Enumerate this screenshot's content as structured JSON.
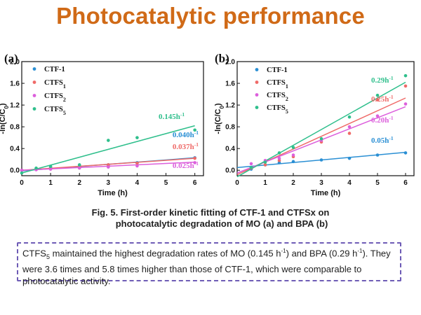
{
  "title": "Photocatalytic performance",
  "caption": {
    "line1": "Fig. 5. First-order kinetic fitting of CTF-1 and CTFSx on",
    "line2": "photocatalytic degradation of MO (a) and BPA (b)"
  },
  "note": {
    "s1": "CTFS",
    "s1_sub": "5",
    "s2": " maintained the highest degradation rates of MO (0.145 h",
    "s2_sup": "-1",
    "s3": ") and BPA (0.29 h",
    "s3_sup": "-1",
    "s4": "). They were 3.6 times and 5.8 times higher than those of CTF-1, which were comparable to photocatalytic activity."
  },
  "colors": {
    "CTF-1": "#2a8fd4",
    "CTFS1": "#ef6a68",
    "CTFS2": "#dc5fdc",
    "CTFS5": "#2fbf8c"
  },
  "chart_data": [
    {
      "type": "scatter",
      "panel": "(a)",
      "xlabel": "Time (h)",
      "ylabel": "-ln(C/C0)",
      "xlim": [
        0,
        6.3
      ],
      "ylim": [
        -0.1,
        2.0
      ],
      "xticks": [
        0,
        1,
        2,
        3,
        4,
        5,
        6
      ],
      "yticks": [
        0.0,
        0.4,
        0.8,
        1.2,
        1.6,
        2.0
      ],
      "legend_position": "top-left",
      "series": [
        {
          "name": "CTF-1",
          "legend_main": "CTF-1",
          "legend_sub": "",
          "key": "CTF-1",
          "x": [
            0,
            0.5,
            1,
            2,
            3,
            4,
            6
          ],
          "y": [
            0,
            0.03,
            0.05,
            0.08,
            0.1,
            0.14,
            0.23
          ],
          "fit": [
            [
              0,
              -0.01
            ],
            [
              6,
              0.23
            ]
          ],
          "rate": "0.040h",
          "rate_sup": "-1"
        },
        {
          "name": "CTFS1",
          "legend_main": "CTFS",
          "legend_sub": "1",
          "key": "CTFS1",
          "x": [
            0,
            0.5,
            1,
            2,
            3,
            4,
            6
          ],
          "y": [
            0,
            0.02,
            0.04,
            0.07,
            0.1,
            0.13,
            0.22
          ],
          "fit": [
            [
              0,
              0.0
            ],
            [
              6,
              0.22
            ]
          ],
          "rate": "0.037h",
          "rate_sup": "-1"
        },
        {
          "name": "CTFS2",
          "legend_main": "CTFS",
          "legend_sub": "2",
          "key": "CTFS2",
          "x": [
            0,
            0.5,
            1,
            2,
            3,
            4,
            6
          ],
          "y": [
            0,
            0.01,
            0.02,
            0.04,
            0.06,
            0.08,
            0.14
          ],
          "fit": [
            [
              0,
              0.0
            ],
            [
              6,
              0.15
            ]
          ],
          "rate": "0.025h",
          "rate_sup": "-1"
        },
        {
          "name": "CTFS5",
          "legend_main": "CTFS",
          "legend_sub": "5",
          "key": "CTFS5",
          "x": [
            0,
            0.5,
            1,
            2,
            3,
            4,
            6
          ],
          "y": [
            -0.05,
            0.04,
            0.07,
            0.1,
            0.55,
            0.6,
            0.74
          ],
          "fit": [
            [
              0,
              -0.05
            ],
            [
              6,
              0.82
            ]
          ],
          "rate": "0.145h",
          "rate_sup": "-1"
        }
      ]
    },
    {
      "type": "scatter",
      "panel": "(b)",
      "xlabel": "Time (h)",
      "ylabel": "-ln(C/C0)",
      "xlim": [
        0,
        6.3
      ],
      "ylim": [
        -0.1,
        2.0
      ],
      "xticks": [
        0,
        1,
        2,
        3,
        4,
        5,
        6
      ],
      "yticks": [
        0.0,
        0.4,
        0.8,
        1.2,
        1.6,
        2.0
      ],
      "legend_position": "top-left",
      "series": [
        {
          "name": "CTF-1",
          "legend_main": "CTF-1",
          "legend_sub": "",
          "key": "CTF-1",
          "x": [
            0.5,
            1,
            1.5,
            2,
            3,
            4,
            5,
            6
          ],
          "y": [
            0.02,
            0.1,
            0.14,
            0.16,
            0.19,
            0.22,
            0.28,
            0.32
          ],
          "fit": [
            [
              0,
              0.05
            ],
            [
              6,
              0.33
            ]
          ],
          "rate": "0.05h",
          "rate_sup": "-1"
        },
        {
          "name": "CTFS1",
          "legend_main": "CTFS",
          "legend_sub": "1",
          "key": "CTFS1",
          "x": [
            0.5,
            1,
            1.5,
            2,
            3,
            4,
            5,
            6
          ],
          "y": [
            0.04,
            0.1,
            0.18,
            0.25,
            0.52,
            0.68,
            1.3,
            1.55
          ],
          "fit": [
            [
              0,
              -0.08
            ],
            [
              6,
              1.33
            ]
          ],
          "rate": "0.25h",
          "rate_sup": "-1"
        },
        {
          "name": "CTFS2",
          "legend_main": "CTFS",
          "legend_sub": "2",
          "key": "CTFS2",
          "x": [
            0.5,
            1,
            1.5,
            2,
            3,
            4,
            5,
            6
          ],
          "y": [
            0.12,
            0.18,
            0.22,
            0.28,
            0.55,
            0.8,
            1.0,
            1.22
          ],
          "fit": [
            [
              0,
              -0.05
            ],
            [
              6,
              1.17
            ]
          ],
          "rate": "0.20h",
          "rate_sup": "-1"
        },
        {
          "name": "CTFS5",
          "legend_main": "CTFS",
          "legend_sub": "5",
          "key": "CTFS5",
          "x": [
            0.5,
            1,
            1.5,
            2,
            3,
            4,
            5,
            6
          ],
          "y": [
            0.05,
            0.15,
            0.32,
            0.42,
            0.58,
            0.98,
            1.38,
            1.74
          ],
          "fit": [
            [
              0,
              -0.12
            ],
            [
              6,
              1.62
            ]
          ],
          "rate": "0.29h",
          "rate_sup": "-1"
        }
      ]
    }
  ]
}
